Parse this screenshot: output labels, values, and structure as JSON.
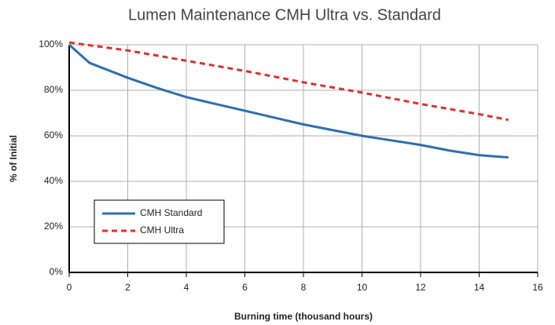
{
  "chart_data": {
    "type": "line",
    "title": "Lumen Maintenance  CMH Ultra vs. Standard",
    "x_label": "Burning time (thousand hours)",
    "y_label": "% of Initial",
    "xlim": [
      0,
      16
    ],
    "xticks": [
      0,
      2,
      4,
      6,
      8,
      10,
      12,
      14,
      16
    ],
    "ylim": [
      0,
      100
    ],
    "yticks": [
      {
        "value": 0,
        "label": "0%"
      },
      {
        "value": 20,
        "label": "20%"
      },
      {
        "value": 40,
        "label": "40%"
      },
      {
        "value": 60,
        "label": "60%"
      },
      {
        "value": 80,
        "label": "80%"
      },
      {
        "value": 100,
        "label": "100%"
      }
    ],
    "grid": true,
    "legend": "lower left",
    "series": [
      {
        "name": "CMH Standard",
        "color": "#2e6fb0",
        "dash": false,
        "x": [
          0,
          0.7,
          1,
          2,
          3,
          4,
          5,
          6,
          7,
          8,
          9,
          10,
          11,
          12,
          13,
          14,
          15
        ],
        "values": [
          100,
          92,
          90.5,
          85.5,
          81,
          77,
          74,
          71,
          68,
          65,
          62.5,
          60,
          58,
          56,
          53.5,
          51.5,
          50.5
        ]
      },
      {
        "name": "CMH Ultra",
        "color": "#e03030",
        "dash": true,
        "x": [
          0,
          2,
          4,
          6,
          8,
          10,
          12,
          14,
          15
        ],
        "values": [
          101,
          97.5,
          93,
          88.5,
          83.5,
          79,
          74,
          69.5,
          67
        ]
      }
    ]
  }
}
